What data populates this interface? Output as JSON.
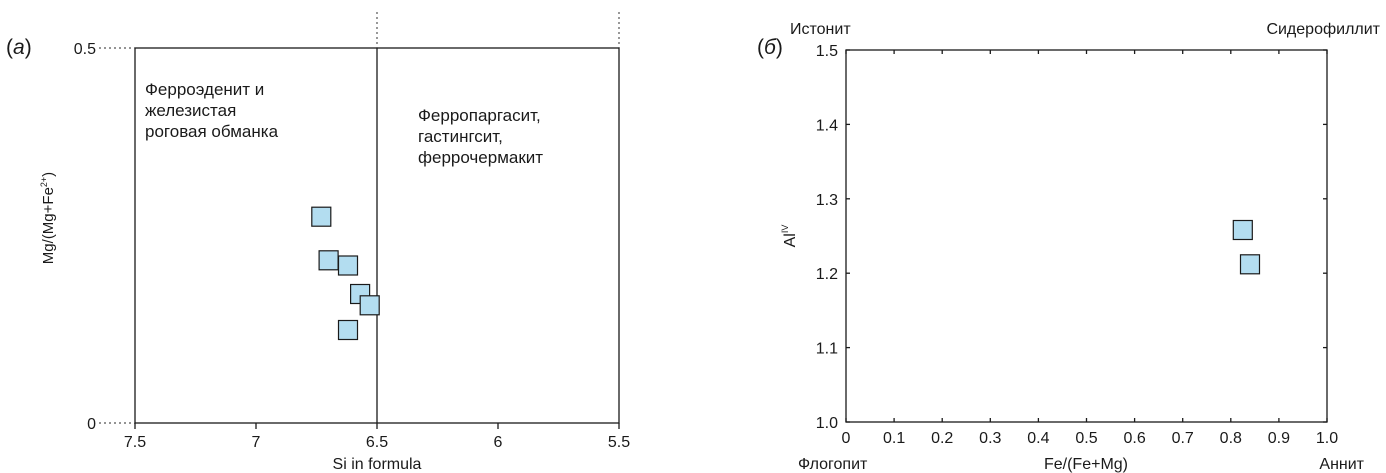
{
  "chart_data": [
    {
      "type": "scatter",
      "panel_label": "(a)",
      "xlabel": "Si in formula",
      "ylabel": "Mg/(Mg+Fe2+)",
      "xlim": [
        7.5,
        5.5
      ],
      "ylim": [
        0,
        0.5
      ],
      "x_ticks": [
        "7.5",
        "7",
        "6.5",
        "6",
        "5.5"
      ],
      "y_ticks": [
        "0",
        "0.5"
      ],
      "boundary_x": 6.5,
      "region_labels": [
        [
          "Ферроэденит и",
          "железистая",
          "роговая обманка"
        ],
        [
          "Ферропаргасит,",
          "гастингсит,",
          "феррочермакит"
        ]
      ],
      "marker_color": "#b3ddf0",
      "points": [
        {
          "x": 6.73,
          "y": 0.275
        },
        {
          "x": 6.7,
          "y": 0.217
        },
        {
          "x": 6.62,
          "y": 0.21
        },
        {
          "x": 6.57,
          "y": 0.172
        },
        {
          "x": 6.53,
          "y": 0.157
        },
        {
          "x": 6.62,
          "y": 0.124
        }
      ]
    },
    {
      "type": "scatter",
      "panel_label": "(б)",
      "xlabel": "Fe/(Fe+Mg)",
      "ylabel": "AlIV",
      "xlim": [
        0,
        1.0
      ],
      "ylim": [
        1.0,
        1.5
      ],
      "x_ticks": [
        "0",
        "0.1",
        "0.2",
        "0.3",
        "0.4",
        "0.5",
        "0.6",
        "0.7",
        "0.8",
        "0.9",
        "1.0"
      ],
      "y_ticks": [
        "1.0",
        "1.1",
        "1.2",
        "1.3",
        "1.4",
        "1.5"
      ],
      "corner_labels": {
        "top_left": "Истонит",
        "top_right": "Сидерофиллит",
        "bottom_left": "Флогопит",
        "bottom_right": "Аннит"
      },
      "marker_color": "#b3ddf0",
      "points": [
        {
          "x": 0.825,
          "y": 1.258
        },
        {
          "x": 0.84,
          "y": 1.212
        }
      ]
    }
  ]
}
